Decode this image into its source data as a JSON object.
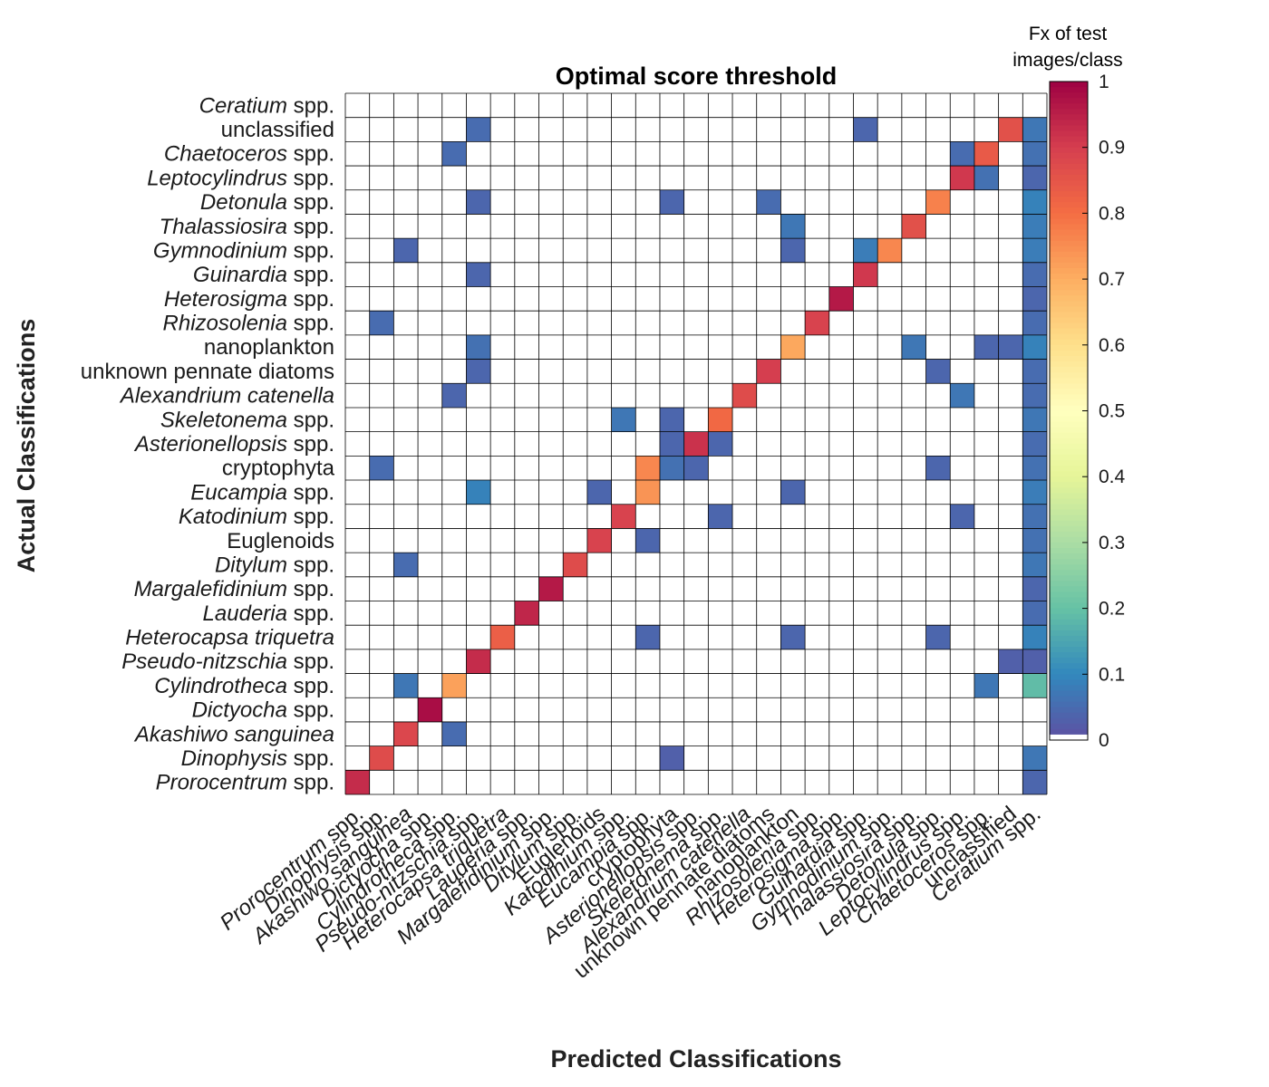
{
  "chart_data": {
    "type": "heatmap",
    "title": "Optimal score threshold",
    "xlabel": "Predicted Classifications",
    "ylabel": "Actual Classifications",
    "colorbar": {
      "label_line1": "Fx of test",
      "label_line2": "images/class",
      "range": [
        0,
        1
      ],
      "ticks": [
        "0",
        "0.1",
        "0.2",
        "0.3",
        "0.4",
        "0.5",
        "0.6",
        "0.7",
        "0.8",
        "0.9",
        "1"
      ],
      "colormap": "spectral (reversed)"
    },
    "classes": [
      {
        "name": "Prorocentrum",
        "suffix": " spp."
      },
      {
        "name": "Dinophysis",
        "suffix": " spp."
      },
      {
        "name": "Akashiwo sanguinea",
        "suffix": ""
      },
      {
        "name": "Dictyocha",
        "suffix": " spp."
      },
      {
        "name": "Cylindrotheca",
        "suffix": " spp."
      },
      {
        "name": "Pseudo-nitzschia",
        "suffix": " spp."
      },
      {
        "name": "Heterocapsa triquetra",
        "suffix": ""
      },
      {
        "name": "Lauderia",
        "suffix": " spp."
      },
      {
        "name": "Margalefidinium",
        "suffix": " spp."
      },
      {
        "name": "Ditylum",
        "suffix": " spp."
      },
      {
        "name": "",
        "suffix": "Euglenoids"
      },
      {
        "name": "Katodinium",
        "suffix": " spp."
      },
      {
        "name": "Eucampia",
        "suffix": " spp."
      },
      {
        "name": "",
        "suffix": "cryptophyta"
      },
      {
        "name": "Asterionellopsis",
        "suffix": " spp."
      },
      {
        "name": "Skeletonema",
        "suffix": " spp."
      },
      {
        "name": "Alexandrium catenella",
        "suffix": ""
      },
      {
        "name": "",
        "suffix": "unknown pennate diatoms"
      },
      {
        "name": "",
        "suffix": "nanoplankton"
      },
      {
        "name": "Rhizosolenia",
        "suffix": " spp."
      },
      {
        "name": "Heterosigma",
        "suffix": " spp."
      },
      {
        "name": "Guinardia",
        "suffix": " spp."
      },
      {
        "name": "Gymnodinium",
        "suffix": " spp."
      },
      {
        "name": "Thalassiosira",
        "suffix": " spp."
      },
      {
        "name": "Detonula",
        "suffix": " spp."
      },
      {
        "name": "Leptocylindrus",
        "suffix": " spp."
      },
      {
        "name": "Chaetoceros",
        "suffix": " spp."
      },
      {
        "name": "",
        "suffix": "unclassified"
      },
      {
        "name": "Ceratium",
        "suffix": " spp."
      }
    ],
    "cells": [
      {
        "actual": 0,
        "predicted": 0,
        "value": 0.93
      },
      {
        "actual": 0,
        "predicted": 28,
        "value": 0.04
      },
      {
        "actual": 1,
        "predicted": 1,
        "value": 0.87
      },
      {
        "actual": 1,
        "predicted": 13,
        "value": 0.03
      },
      {
        "actual": 1,
        "predicted": 28,
        "value": 0.07
      },
      {
        "actual": 2,
        "predicted": 2,
        "value": 0.88
      },
      {
        "actual": 2,
        "predicted": 4,
        "value": 0.05
      },
      {
        "actual": 3,
        "predicted": 3,
        "value": 0.98
      },
      {
        "actual": 4,
        "predicted": 2,
        "value": 0.07
      },
      {
        "actual": 4,
        "predicted": 4,
        "value": 0.72
      },
      {
        "actual": 4,
        "predicted": 26,
        "value": 0.07
      },
      {
        "actual": 4,
        "predicted": 28,
        "value": 0.19
      },
      {
        "actual": 5,
        "predicted": 5,
        "value": 0.93
      },
      {
        "actual": 5,
        "predicted": 27,
        "value": 0.03
      },
      {
        "actual": 5,
        "predicted": 28,
        "value": 0.03
      },
      {
        "actual": 6,
        "predicted": 6,
        "value": 0.83
      },
      {
        "actual": 6,
        "predicted": 12,
        "value": 0.04
      },
      {
        "actual": 6,
        "predicted": 18,
        "value": 0.04
      },
      {
        "actual": 6,
        "predicted": 24,
        "value": 0.04
      },
      {
        "actual": 6,
        "predicted": 28,
        "value": 0.09
      },
      {
        "actual": 7,
        "predicted": 7,
        "value": 0.94
      },
      {
        "actual": 7,
        "predicted": 28,
        "value": 0.05
      },
      {
        "actual": 8,
        "predicted": 8,
        "value": 0.96
      },
      {
        "actual": 8,
        "predicted": 28,
        "value": 0.04
      },
      {
        "actual": 9,
        "predicted": 9,
        "value": 0.87
      },
      {
        "actual": 9,
        "predicted": 2,
        "value": 0.05
      },
      {
        "actual": 9,
        "predicted": 28,
        "value": 0.07
      },
      {
        "actual": 10,
        "predicted": 10,
        "value": 0.89
      },
      {
        "actual": 10,
        "predicted": 12,
        "value": 0.04
      },
      {
        "actual": 10,
        "predicted": 28,
        "value": 0.06
      },
      {
        "actual": 11,
        "predicted": 11,
        "value": 0.89
      },
      {
        "actual": 11,
        "predicted": 15,
        "value": 0.04
      },
      {
        "actual": 11,
        "predicted": 25,
        "value": 0.04
      },
      {
        "actual": 11,
        "predicted": 28,
        "value": 0.06
      },
      {
        "actual": 12,
        "predicted": 12,
        "value": 0.74
      },
      {
        "actual": 12,
        "predicted": 5,
        "value": 0.09
      },
      {
        "actual": 12,
        "predicted": 10,
        "value": 0.04
      },
      {
        "actual": 12,
        "predicted": 18,
        "value": 0.04
      },
      {
        "actual": 12,
        "predicted": 28,
        "value": 0.08
      },
      {
        "actual": 13,
        "predicted": 13,
        "value": 0.06
      },
      {
        "actual": 13,
        "predicted": 12,
        "value": 0.76
      },
      {
        "actual": 13,
        "predicted": 14,
        "value": 0.04
      },
      {
        "actual": 13,
        "predicted": 1,
        "value": 0.05
      },
      {
        "actual": 13,
        "predicted": 24,
        "value": 0.04
      },
      {
        "actual": 13,
        "predicted": 28,
        "value": 0.06
      },
      {
        "actual": 14,
        "predicted": 14,
        "value": 0.92
      },
      {
        "actual": 14,
        "predicted": 13,
        "value": 0.04
      },
      {
        "actual": 14,
        "predicted": 15,
        "value": 0.04
      },
      {
        "actual": 14,
        "predicted": 28,
        "value": 0.05
      },
      {
        "actual": 15,
        "predicted": 15,
        "value": 0.81
      },
      {
        "actual": 15,
        "predicted": 11,
        "value": 0.07
      },
      {
        "actual": 15,
        "predicted": 13,
        "value": 0.04
      },
      {
        "actual": 15,
        "predicted": 28,
        "value": 0.07
      },
      {
        "actual": 16,
        "predicted": 16,
        "value": 0.87
      },
      {
        "actual": 16,
        "predicted": 4,
        "value": 0.04
      },
      {
        "actual": 16,
        "predicted": 25,
        "value": 0.07
      },
      {
        "actual": 16,
        "predicted": 28,
        "value": 0.05
      },
      {
        "actual": 17,
        "predicted": 17,
        "value": 0.9
      },
      {
        "actual": 17,
        "predicted": 5,
        "value": 0.04
      },
      {
        "actual": 17,
        "predicted": 24,
        "value": 0.04
      },
      {
        "actual": 17,
        "predicted": 28,
        "value": 0.05
      },
      {
        "actual": 18,
        "predicted": 18,
        "value": 0.71
      },
      {
        "actual": 18,
        "predicted": 5,
        "value": 0.06
      },
      {
        "actual": 18,
        "predicted": 23,
        "value": 0.07
      },
      {
        "actual": 18,
        "predicted": 26,
        "value": 0.04
      },
      {
        "actual": 18,
        "predicted": 27,
        "value": 0.04
      },
      {
        "actual": 18,
        "predicted": 28,
        "value": 0.09
      },
      {
        "actual": 19,
        "predicted": 19,
        "value": 0.89
      },
      {
        "actual": 19,
        "predicted": 1,
        "value": 0.05
      },
      {
        "actual": 19,
        "predicted": 28,
        "value": 0.05
      },
      {
        "actual": 20,
        "predicted": 20,
        "value": 0.96
      },
      {
        "actual": 20,
        "predicted": 28,
        "value": 0.04
      },
      {
        "actual": 21,
        "predicted": 21,
        "value": 0.91
      },
      {
        "actual": 21,
        "predicted": 5,
        "value": 0.04
      },
      {
        "actual": 21,
        "predicted": 28,
        "value": 0.05
      },
      {
        "actual": 22,
        "predicted": 22,
        "value": 0.76
      },
      {
        "actual": 22,
        "predicted": 21,
        "value": 0.08
      },
      {
        "actual": 22,
        "predicted": 18,
        "value": 0.04
      },
      {
        "actual": 22,
        "predicted": 2,
        "value": 0.04
      },
      {
        "actual": 22,
        "predicted": 28,
        "value": 0.08
      },
      {
        "actual": 23,
        "predicted": 23,
        "value": 0.86
      },
      {
        "actual": 23,
        "predicted": 18,
        "value": 0.07
      },
      {
        "actual": 23,
        "predicted": 28,
        "value": 0.08
      },
      {
        "actual": 24,
        "predicted": 24,
        "value": 0.77
      },
      {
        "actual": 24,
        "predicted": 5,
        "value": 0.04
      },
      {
        "actual": 24,
        "predicted": 13,
        "value": 0.04
      },
      {
        "actual": 24,
        "predicted": 17,
        "value": 0.05
      },
      {
        "actual": 24,
        "predicted": 28,
        "value": 0.09
      },
      {
        "actual": 25,
        "predicted": 25,
        "value": 0.91
      },
      {
        "actual": 25,
        "predicted": 26,
        "value": 0.06
      },
      {
        "actual": 25,
        "predicted": 28,
        "value": 0.04
      },
      {
        "actual": 26,
        "predicted": 26,
        "value": 0.84
      },
      {
        "actual": 26,
        "predicted": 25,
        "value": 0.05
      },
      {
        "actual": 26,
        "predicted": 4,
        "value": 0.05
      },
      {
        "actual": 26,
        "predicted": 28,
        "value": 0.06
      },
      {
        "actual": 27,
        "predicted": 27,
        "value": 0.86
      },
      {
        "actual": 27,
        "predicted": 5,
        "value": 0.05
      },
      {
        "actual": 27,
        "predicted": 21,
        "value": 0.04
      },
      {
        "actual": 27,
        "predicted": 28,
        "value": 0.07
      }
    ]
  }
}
